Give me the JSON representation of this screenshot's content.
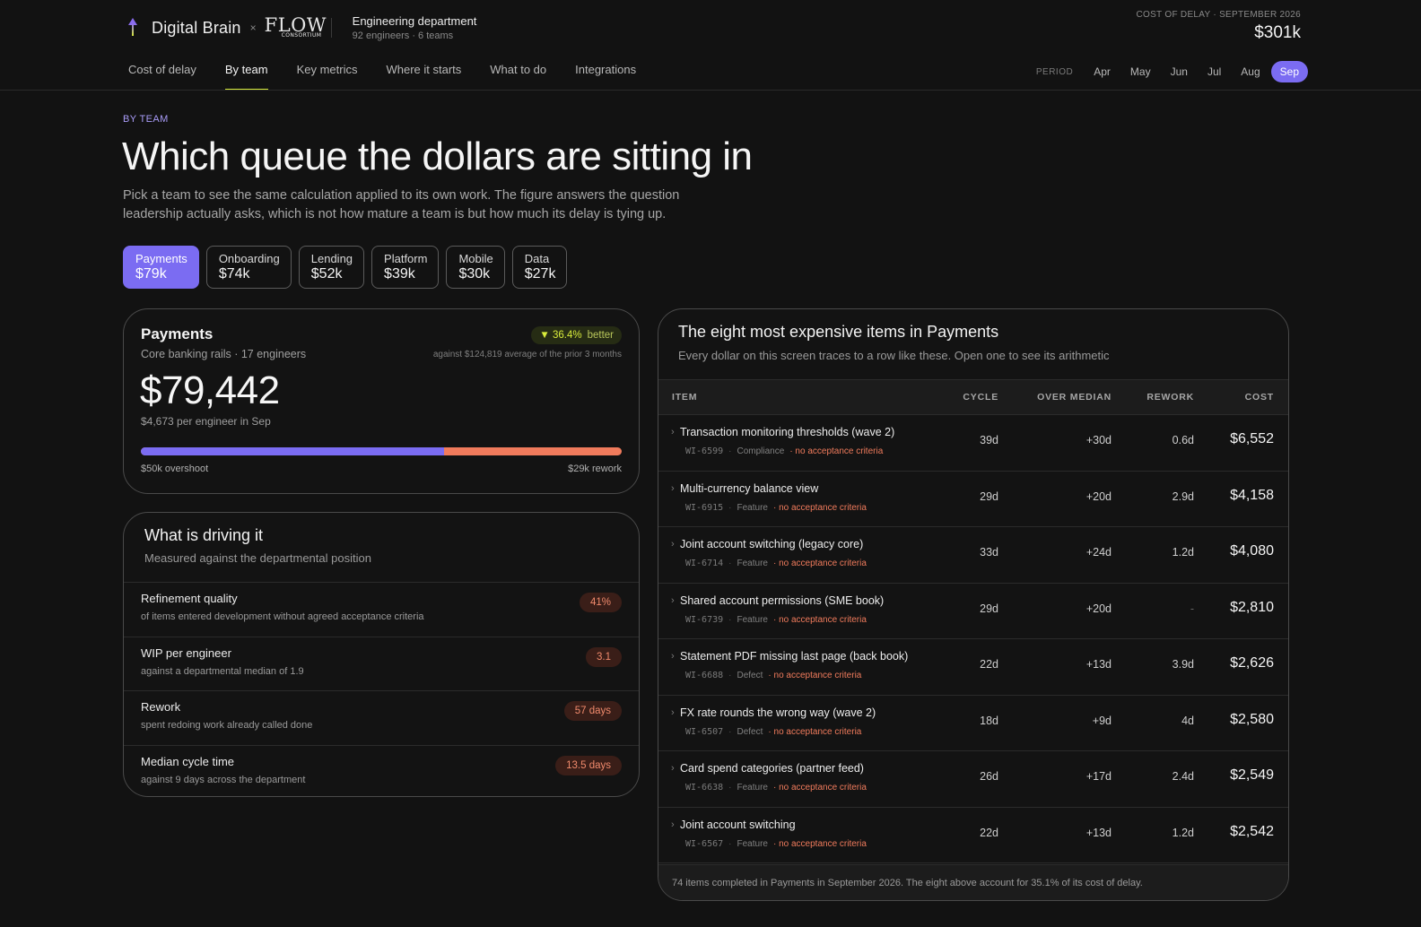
{
  "brand": {
    "name": "Digital Brain",
    "separator": "×",
    "partner_logo": "FLOW",
    "partner_logo_sub": "CONSORTIUM"
  },
  "department": {
    "name": "Engineering department",
    "meta": "92 engineers · 6 teams"
  },
  "cost_of_delay": {
    "label": "COST OF DELAY · SEPTEMBER 2026",
    "value": "$301k"
  },
  "nav": {
    "items": [
      {
        "label": "Cost of delay",
        "active": false
      },
      {
        "label": "By team",
        "active": true
      },
      {
        "label": "Key metrics",
        "active": false
      },
      {
        "label": "Where it starts",
        "active": false
      },
      {
        "label": "What to do",
        "active": false
      },
      {
        "label": "Integrations",
        "active": false
      }
    ]
  },
  "period": {
    "label": "PERIOD",
    "months": [
      "Apr",
      "May",
      "Jun",
      "Jul",
      "Aug",
      "Sep"
    ],
    "selected": "Sep"
  },
  "intro": {
    "kicker": "BY TEAM",
    "headline": "Which queue the dollars are sitting in",
    "lede": "Pick a team to see the same calculation applied to its own work. The figure answers the question leadership actually asks, which is not how mature a team is but how much its delay is tying up."
  },
  "teams": [
    {
      "name": "Payments",
      "value": "$79k",
      "active": true
    },
    {
      "name": "Onboarding",
      "value": "$74k",
      "active": false
    },
    {
      "name": "Lending",
      "value": "$52k",
      "active": false
    },
    {
      "name": "Platform",
      "value": "$39k",
      "active": false
    },
    {
      "name": "Mobile",
      "value": "$30k",
      "active": false
    },
    {
      "name": "Data",
      "value": "$27k",
      "active": false
    }
  ],
  "summary": {
    "title": "Payments",
    "subtitle": "Core banking rails · 17 engineers",
    "change_icon": "▼",
    "change_pct": "36.4%",
    "change_word": "better",
    "against": "against $124,819 average of the prior 3 months",
    "value": "$79,442",
    "per_engineer": "$4,673 per engineer in Sep",
    "overshoot_fraction": 0.63,
    "overshoot_label": "$50k overshoot",
    "rework_label": "$29k rework",
    "colors": {
      "overshoot": "#7b6cf2",
      "rework": "#f07b5c"
    }
  },
  "drivers": {
    "title": "What is driving it",
    "subtitle": "Measured against the departmental position",
    "rows": [
      {
        "name": "Refinement quality",
        "desc": "of items entered development without agreed acceptance criteria",
        "badge": "41%"
      },
      {
        "name": "WIP per engineer",
        "desc": "against a departmental median of 1.9",
        "badge": "3.1"
      },
      {
        "name": "Rework",
        "desc": "spent redoing work already called done",
        "badge": "57 days"
      },
      {
        "name": "Median cycle time",
        "desc": "against 9 days across the department",
        "badge": "13.5 days"
      }
    ]
  },
  "items": {
    "title": "The eight most expensive items in Payments",
    "subtitle": "Every dollar on this screen traces to a row like these. Open one to see its arithmetic",
    "columns": {
      "item": "ITEM",
      "cycle": "CYCLE",
      "over": "OVER MEDIAN",
      "rework": "REWORK",
      "cost": "COST"
    },
    "chevron_icon": "›",
    "rows": [
      {
        "name": "Transaction monitoring thresholds (wave 2)",
        "id": "WI-6599",
        "type": "Compliance",
        "flag": "no acceptance criteria",
        "cycle": "39d",
        "over": "+30d",
        "rework": "0.6d",
        "cost": "$6,552"
      },
      {
        "name": "Multi-currency balance view",
        "id": "WI-6915",
        "type": "Feature",
        "flag": "no acceptance criteria",
        "cycle": "29d",
        "over": "+20d",
        "rework": "2.9d",
        "cost": "$4,158"
      },
      {
        "name": "Joint account switching (legacy core)",
        "id": "WI-6714",
        "type": "Feature",
        "flag": "no acceptance criteria",
        "cycle": "33d",
        "over": "+24d",
        "rework": "1.2d",
        "cost": "$4,080"
      },
      {
        "name": "Shared account permissions (SME book)",
        "id": "WI-6739",
        "type": "Feature",
        "flag": "no acceptance criteria",
        "cycle": "29d",
        "over": "+20d",
        "rework": "-",
        "cost": "$2,810"
      },
      {
        "name": "Statement PDF missing last page (back book)",
        "id": "WI-6688",
        "type": "Defect",
        "flag": "no acceptance criteria",
        "cycle": "22d",
        "over": "+13d",
        "rework": "3.9d",
        "cost": "$2,626"
      },
      {
        "name": "FX rate rounds the wrong way (wave 2)",
        "id": "WI-6507",
        "type": "Defect",
        "flag": "no acceptance criteria",
        "cycle": "18d",
        "over": "+9d",
        "rework": "4d",
        "cost": "$2,580"
      },
      {
        "name": "Card spend categories (partner feed)",
        "id": "WI-6638",
        "type": "Feature",
        "flag": "no acceptance criteria",
        "cycle": "26d",
        "over": "+17d",
        "rework": "2.4d",
        "cost": "$2,549"
      },
      {
        "name": "Joint account switching",
        "id": "WI-6567",
        "type": "Feature",
        "flag": "no acceptance criteria",
        "cycle": "22d",
        "over": "+13d",
        "rework": "1.2d",
        "cost": "$2,542"
      }
    ],
    "footer": "74 items completed in Payments in September 2026. The eight above account for 35.1% of its cost of delay."
  }
}
